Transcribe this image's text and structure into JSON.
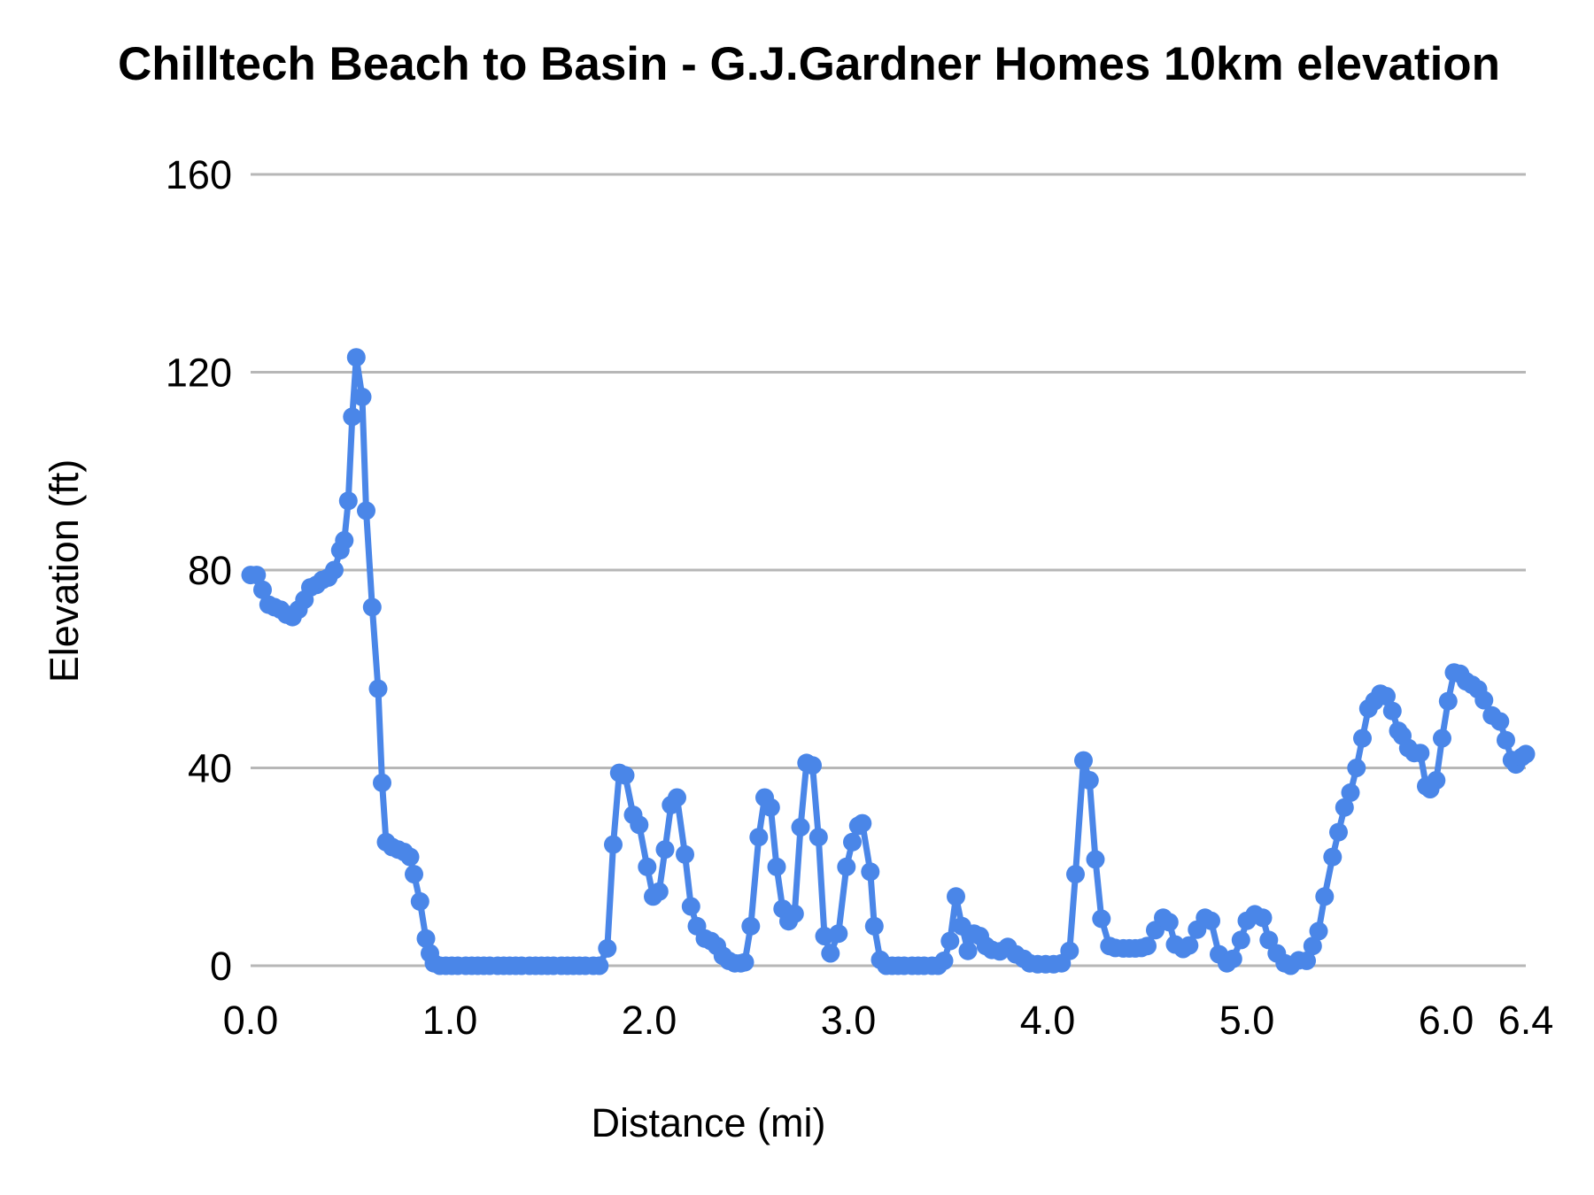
{
  "title": "Chilltech Beach to Basin - G.J.Gardner Homes 10km elevation",
  "chart_data": {
    "type": "line",
    "title": "Chilltech Beach to Basin - G.J.Gardner Homes 10km elevation",
    "xlabel": "Distance (mi)",
    "ylabel": "Elevation (ft)",
    "xlim": [
      0,
      6.4
    ],
    "ylim": [
      0,
      160
    ],
    "grid": "horizontal",
    "legend_position": "none",
    "x_ticks": {
      "labels": [
        "0.0",
        "1.0",
        "2.0",
        "3.0",
        "4.0",
        "5.0",
        "6.0",
        "6.4"
      ],
      "values": [
        0,
        1,
        2,
        3,
        4,
        5,
        6,
        6.4
      ]
    },
    "y_ticks": {
      "labels": [
        "0",
        "40",
        "80",
        "120",
        "160"
      ],
      "values": [
        0,
        40,
        80,
        120,
        160
      ]
    },
    "colors": {
      "series": "#4a86e8",
      "gridline": "#b7b7b7",
      "text": "#000000"
    },
    "marker": "circle",
    "series": [
      {
        "name": "Elevation (ft)",
        "x": [
          0.0,
          0.03,
          0.06,
          0.09,
          0.12,
          0.15,
          0.18,
          0.21,
          0.24,
          0.27,
          0.3,
          0.33,
          0.36,
          0.39,
          0.42,
          0.45,
          0.47,
          0.49,
          0.51,
          0.53,
          0.56,
          0.58,
          0.61,
          0.64,
          0.66,
          0.68,
          0.71,
          0.74,
          0.77,
          0.8,
          0.82,
          0.85,
          0.88,
          0.9,
          0.92,
          0.95,
          0.98,
          1.01,
          1.04,
          1.08,
          1.11,
          1.14,
          1.17,
          1.2,
          1.24,
          1.27,
          1.3,
          1.33,
          1.36,
          1.4,
          1.43,
          1.46,
          1.49,
          1.52,
          1.56,
          1.59,
          1.62,
          1.65,
          1.68,
          1.72,
          1.75,
          1.79,
          1.82,
          1.85,
          1.88,
          1.92,
          1.95,
          1.99,
          2.02,
          2.05,
          2.08,
          2.11,
          2.14,
          2.18,
          2.21,
          2.24,
          2.28,
          2.31,
          2.34,
          2.37,
          2.4,
          2.43,
          2.46,
          2.48,
          2.51,
          2.55,
          2.58,
          2.61,
          2.64,
          2.67,
          2.7,
          2.73,
          2.76,
          2.79,
          2.82,
          2.85,
          2.88,
          2.91,
          2.95,
          2.99,
          3.02,
          3.05,
          3.07,
          3.11,
          3.13,
          3.16,
          3.19,
          3.22,
          3.25,
          3.28,
          3.32,
          3.35,
          3.38,
          3.42,
          3.45,
          3.48,
          3.51,
          3.54,
          3.57,
          3.6,
          3.63,
          3.66,
          3.69,
          3.72,
          3.76,
          3.8,
          3.84,
          3.88,
          3.91,
          3.95,
          3.99,
          4.03,
          4.07,
          4.11,
          4.14,
          4.18,
          4.21,
          4.24,
          4.27,
          4.31,
          4.34,
          4.38,
          4.41,
          4.44,
          4.47,
          4.5,
          4.54,
          4.58,
          4.61,
          4.64,
          4.68,
          4.71,
          4.75,
          4.79,
          4.82,
          4.86,
          4.9,
          4.93,
          4.97,
          5.0,
          5.04,
          5.08,
          5.11,
          5.15,
          5.19,
          5.22,
          5.26,
          5.3,
          5.33,
          5.36,
          5.39,
          5.43,
          5.46,
          5.49,
          5.52,
          5.55,
          5.58,
          5.61,
          5.64,
          5.67,
          5.7,
          5.73,
          5.76,
          5.78,
          5.81,
          5.84,
          5.87,
          5.9,
          5.92,
          5.95,
          5.98,
          6.01,
          6.04,
          6.07,
          6.1,
          6.13,
          6.16,
          6.19,
          6.23,
          6.27,
          6.3,
          6.33,
          6.35,
          6.38,
          6.4
        ],
        "y": [
          79,
          79,
          76,
          73,
          72.5,
          72,
          71,
          70.5,
          72,
          74,
          76.5,
          77,
          78,
          78.5,
          80,
          84,
          86,
          94,
          111,
          123,
          115,
          92,
          72.5,
          56,
          37,
          25,
          24,
          23.5,
          23,
          22,
          18.5,
          13,
          5.5,
          2.5,
          0.5,
          0,
          0,
          0,
          0,
          0,
          0,
          0,
          0,
          0,
          0,
          0,
          0,
          0,
          0,
          0,
          0,
          0,
          0,
          0,
          0,
          0,
          0,
          0,
          0,
          0,
          0,
          3.5,
          24.5,
          39,
          38.5,
          30.5,
          28.5,
          20,
          14,
          15,
          23.5,
          32.5,
          34,
          22.5,
          12,
          8,
          5.5,
          5,
          4,
          2,
          1,
          0.5,
          0.5,
          0.7,
          8,
          26,
          34,
          32,
          20,
          11.5,
          9,
          10.5,
          28,
          41,
          40.5,
          26,
          6,
          2.5,
          6.5,
          20,
          25,
          28.3,
          28.8,
          19,
          8,
          1.2,
          0,
          0,
          0,
          0,
          0,
          0,
          0,
          0,
          0,
          1,
          5,
          14,
          8,
          3,
          6.5,
          6,
          4,
          3.2,
          2.9,
          3.8,
          2.3,
          1.4,
          0.5,
          0.3,
          0.3,
          0.3,
          0.5,
          3,
          18.5,
          41.5,
          37.5,
          21.5,
          9.5,
          4,
          3.6,
          3.5,
          3.5,
          3.5,
          3.6,
          4,
          7.2,
          9.7,
          8.8,
          4.3,
          3.4,
          4.1,
          7.3,
          9.7,
          9.1,
          2.3,
          0.5,
          1.4,
          5.2,
          9.1,
          10.4,
          9.7,
          5.2,
          2.5,
          0.5,
          0,
          1.1,
          1,
          4,
          7,
          14,
          22,
          27,
          32,
          35,
          40,
          46,
          52,
          53.5,
          55,
          54.5,
          51.5,
          47.5,
          46.5,
          44,
          43,
          43,
          36.3,
          35.7,
          37.5,
          46,
          53.5,
          59.3,
          59,
          57.5,
          56.8,
          55.9,
          53.7,
          50.6,
          49.4,
          45.6,
          41.6,
          40.7,
          42.2,
          42.8
        ]
      }
    ]
  }
}
